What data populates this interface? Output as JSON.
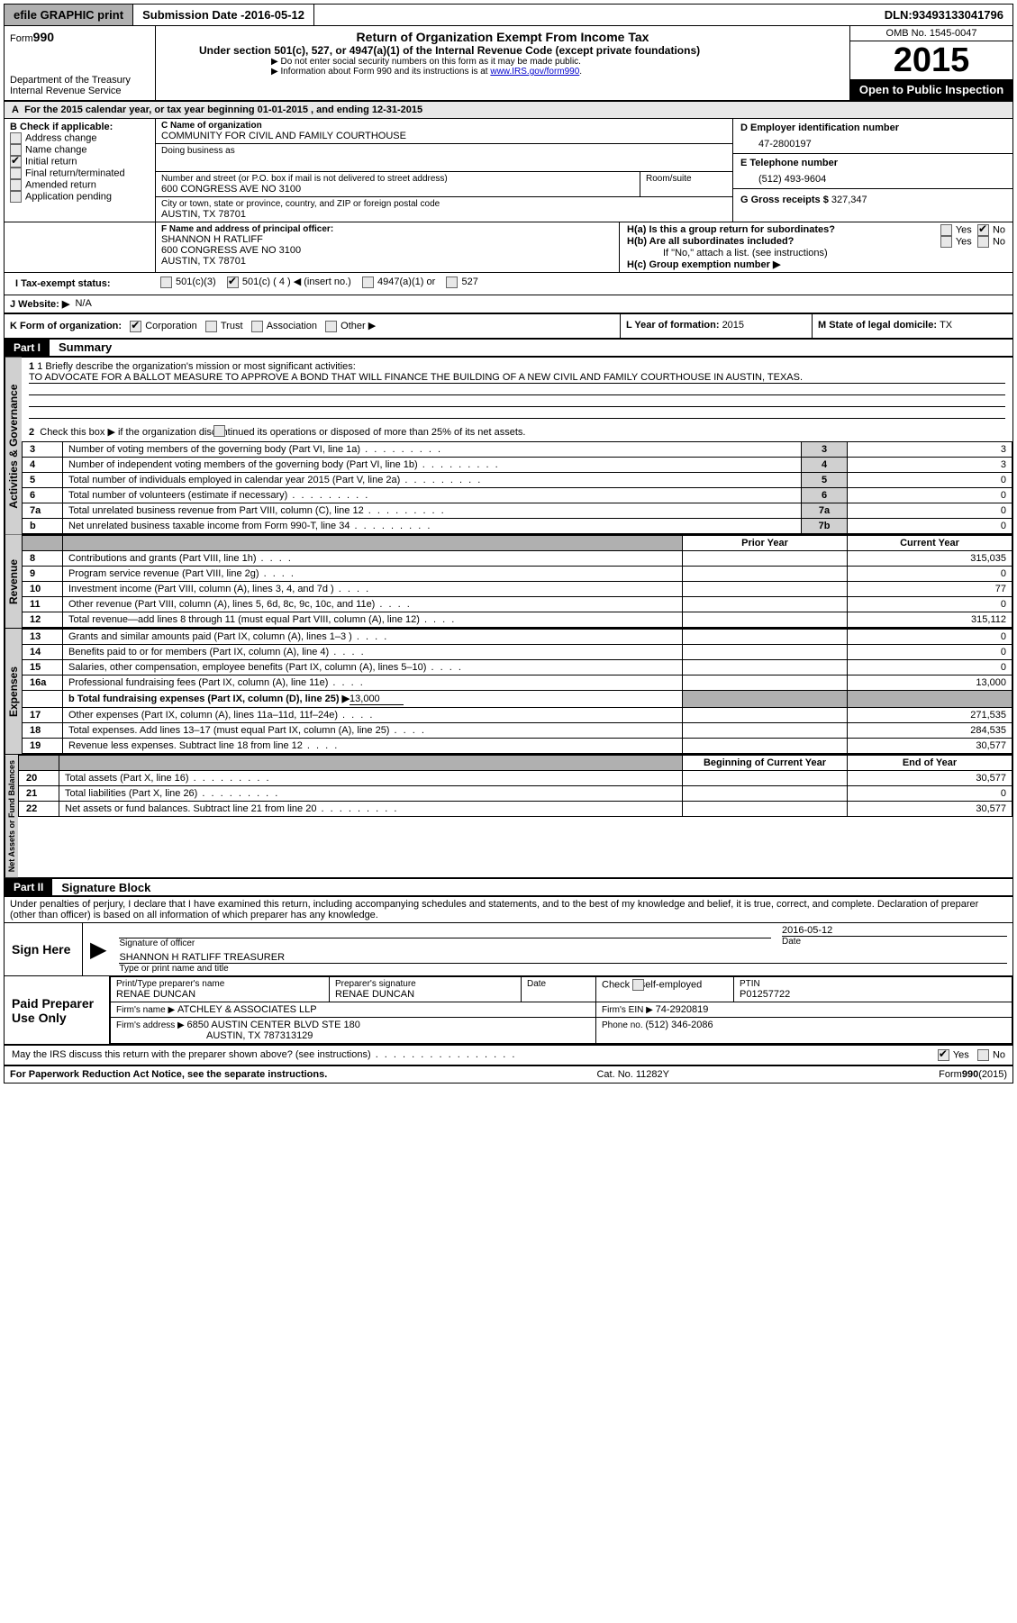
{
  "topbar": {
    "efile": "efile GRAPHIC print",
    "submission_label": "Submission Date - ",
    "submission_date": "2016-05-12",
    "dln_label": "DLN: ",
    "dln": "93493133041796"
  },
  "header": {
    "form_label": "Form",
    "form_no": "990",
    "dept": "Department of the Treasury",
    "irs": "Internal Revenue Service",
    "title": "Return of Organization Exempt From Income Tax",
    "subtitle": "Under section 501(c), 527, or 4947(a)(1) of the Internal Revenue Code (except private foundations)",
    "note1": "▶ Do not enter social security numbers on this form as it may be made public.",
    "note2_a": "▶ Information about Form 990 and its instructions is at ",
    "note2_link": "www.IRS.gov/form990",
    "note2_b": ".",
    "omb_label": "OMB No. ",
    "omb": "1545-0047",
    "year": "2015",
    "inspect": "Open to Public Inspection"
  },
  "A": {
    "text_a": "For the 2015 calendar year, or tax year beginning ",
    "begin": "01-01-2015",
    "text_b": " , and ending ",
    "end": "12-31-2015"
  },
  "B": {
    "label": "B Check if applicable:",
    "items": [
      "Address change",
      "Name change",
      "Initial return",
      "Final return/terminated",
      "Amended return",
      "Application pending"
    ],
    "checked_index": 2
  },
  "C": {
    "name_label": "C Name of organization",
    "name": "COMMUNITY FOR CIVIL AND FAMILY COURTHOUSE",
    "dba_label": "Doing business as",
    "street_label": "Number and street (or P.O. box if mail is not delivered to street address)",
    "room_label": "Room/suite",
    "street": "600 CONGRESS AVE NO 3100",
    "city_label": "City or town, state or province, country, and ZIP or foreign postal code",
    "city": "AUSTIN, TX  78701"
  },
  "D": {
    "label": "D Employer identification number",
    "value": "47-2800197"
  },
  "E": {
    "label": "E Telephone number",
    "value": "(512) 493-9604"
  },
  "G": {
    "label": "G Gross receipts $ ",
    "value": "327,347"
  },
  "F": {
    "label": "F  Name and address of principal officer:",
    "name": "SHANNON H RATLIFF",
    "addr1": "600 CONGRESS AVE NO 3100",
    "addr2": "AUSTIN, TX  78701"
  },
  "H": {
    "a_label": "H(a)  Is this a group return for subordinates?",
    "b_label": "H(b)  Are all subordinates included?",
    "b_note": "If \"No,\" attach a list. (see instructions)",
    "c_label": "H(c)  Group exemption number ▶",
    "yes": "Yes",
    "no": "No"
  },
  "I": {
    "label": "I  Tax-exempt status:",
    "opts": [
      "501(c)(3)",
      "501(c) ( 4 ) ◀ (insert no.)",
      "4947(a)(1) or",
      "527"
    ],
    "checked_index": 1
  },
  "J": {
    "label": "J  Website: ▶",
    "value": "N/A"
  },
  "K": {
    "label": "K Form of organization:",
    "opts": [
      "Corporation",
      "Trust",
      "Association",
      "Other ▶"
    ],
    "checked_index": 0
  },
  "L": {
    "label": "L Year of formation: ",
    "value": "2015"
  },
  "M": {
    "label": "M State of legal domicile: ",
    "value": "TX"
  },
  "part1": {
    "hdr": "Part I",
    "title": "Summary",
    "vtab_ag": "Activities & Governance",
    "vtab_rev": "Revenue",
    "vtab_exp": "Expenses",
    "vtab_na": "Net Assets or Fund Balances",
    "l1_label": "1 Briefly describe the organization's mission or most significant activities:",
    "l1_text": "TO ADVOCATE FOR A BALLOT MEASURE TO APPROVE A BOND THAT WILL FINANCE THE BUILDING OF A NEW CIVIL AND FAMILY COURTHOUSE IN AUSTIN, TEXAS.",
    "l2": "Check this box ▶          if the organization discontinued its operations or disposed of more than 25% of its net assets.",
    "lines_gov": [
      {
        "n": "3",
        "desc": "Number of voting members of the governing body (Part VI, line 1a)",
        "box": "3",
        "val": "3"
      },
      {
        "n": "4",
        "desc": "Number of independent voting members of the governing body (Part VI, line 1b)",
        "box": "4",
        "val": "3"
      },
      {
        "n": "5",
        "desc": "Total number of individuals employed in calendar year 2015 (Part V, line 2a)",
        "box": "5",
        "val": "0"
      },
      {
        "n": "6",
        "desc": "Total number of volunteers (estimate if necessary)",
        "box": "6",
        "val": "0"
      },
      {
        "n": "7a",
        "desc": "Total unrelated business revenue from Part VIII, column (C), line 12",
        "box": "7a",
        "val": "0"
      },
      {
        "n": "b",
        "desc": "Net unrelated business taxable income from Form 990-T, line 34",
        "box": "7b",
        "val": "0"
      }
    ],
    "col_prior": "Prior Year",
    "col_curr": "Current Year",
    "lines_rev": [
      {
        "n": "8",
        "desc": "Contributions and grants (Part VIII, line 1h)",
        "prior": "",
        "curr": "315,035"
      },
      {
        "n": "9",
        "desc": "Program service revenue (Part VIII, line 2g)",
        "prior": "",
        "curr": "0"
      },
      {
        "n": "10",
        "desc": "Investment income (Part VIII, column (A), lines 3, 4, and 7d )",
        "prior": "",
        "curr": "77"
      },
      {
        "n": "11",
        "desc": "Other revenue (Part VIII, column (A), lines 5, 6d, 8c, 9c, 10c, and 11e)",
        "prior": "",
        "curr": "0"
      },
      {
        "n": "12",
        "desc": "Total revenue—add lines 8 through 11 (must equal Part VIII, column (A), line 12)",
        "prior": "",
        "curr": "315,112"
      }
    ],
    "lines_exp": [
      {
        "n": "13",
        "desc": "Grants and similar amounts paid (Part IX, column (A), lines 1–3 )",
        "prior": "",
        "curr": "0"
      },
      {
        "n": "14",
        "desc": "Benefits paid to or for members (Part IX, column (A), line 4)",
        "prior": "",
        "curr": "0"
      },
      {
        "n": "15",
        "desc": "Salaries, other compensation, employee benefits (Part IX, column (A), lines 5–10)",
        "prior": "",
        "curr": "0"
      },
      {
        "n": "16a",
        "desc": "Professional fundraising fees (Part IX, column (A), line 11e)",
        "prior": "",
        "curr": "13,000"
      }
    ],
    "l16b": "b  Total fundraising expenses (Part IX, column (D), line 25) ▶",
    "l16b_val": "13,000",
    "lines_exp2": [
      {
        "n": "17",
        "desc": "Other expenses (Part IX, column (A), lines 11a–11d, 11f–24e)",
        "prior": "",
        "curr": "271,535"
      },
      {
        "n": "18",
        "desc": "Total expenses. Add lines 13–17 (must equal Part IX, column (A), line 25)",
        "prior": "",
        "curr": "284,535"
      },
      {
        "n": "19",
        "desc": "Revenue less expenses. Subtract line 18 from line 12",
        "prior": "",
        "curr": "30,577"
      }
    ],
    "col_begin": "Beginning of Current Year",
    "col_end": "End of Year",
    "lines_na": [
      {
        "n": "20",
        "desc": "Total assets (Part X, line 16)",
        "prior": "",
        "curr": "30,577"
      },
      {
        "n": "21",
        "desc": "Total liabilities (Part X, line 26)",
        "prior": "",
        "curr": "0"
      },
      {
        "n": "22",
        "desc": "Net assets or fund balances. Subtract line 21 from line 20",
        "prior": "",
        "curr": "30,577"
      }
    ]
  },
  "part2": {
    "hdr": "Part II",
    "title": "Signature Block",
    "decl": "Under penalties of perjury, I declare that I have examined this return, including accompanying schedules and statements, and to the best of my knowledge and belief, it is true, correct, and complete. Declaration of preparer (other than officer) is based on all information of which preparer has any knowledge.",
    "sign_here": "Sign Here",
    "sig_officer": "Signature of officer",
    "date_lbl": "Date",
    "date_val": "2016-05-12",
    "officer_name": "SHANNON H RATLIFF TREASURER",
    "type_name": "Type or print name and title",
    "paid": "Paid Preparer Use Only",
    "prep_name_lbl": "Print/Type preparer's name",
    "prep_name": "RENAE DUNCAN",
    "prep_sig_lbl": "Preparer's signature",
    "prep_sig": "RENAE DUNCAN",
    "prep_date_lbl": "Date",
    "check_se": "Check          if self-employed",
    "ptin_lbl": "PTIN",
    "ptin": "P01257722",
    "firm_name_lbl": "Firm's name      ▶ ",
    "firm_name": "ATCHLEY & ASSOCIATES LLP",
    "firm_ein_lbl": "Firm's EIN ▶ ",
    "firm_ein": "74-2920819",
    "firm_addr_lbl": "Firm's address ▶ ",
    "firm_addr1": "6850 AUSTIN CENTER BLVD STE 180",
    "firm_addr2": "AUSTIN, TX  787313129",
    "phone_lbl": "Phone no. ",
    "phone": "(512) 346-2086",
    "discuss": "May the IRS discuss this return with the preparer shown above? (see instructions)",
    "yes": "Yes",
    "no": "No"
  },
  "footer": {
    "pra": "For Paperwork Reduction Act Notice, see the separate instructions.",
    "cat": "Cat. No. 11282Y",
    "form": "Form",
    "formno": "990",
    "formyr": "(2015)"
  }
}
